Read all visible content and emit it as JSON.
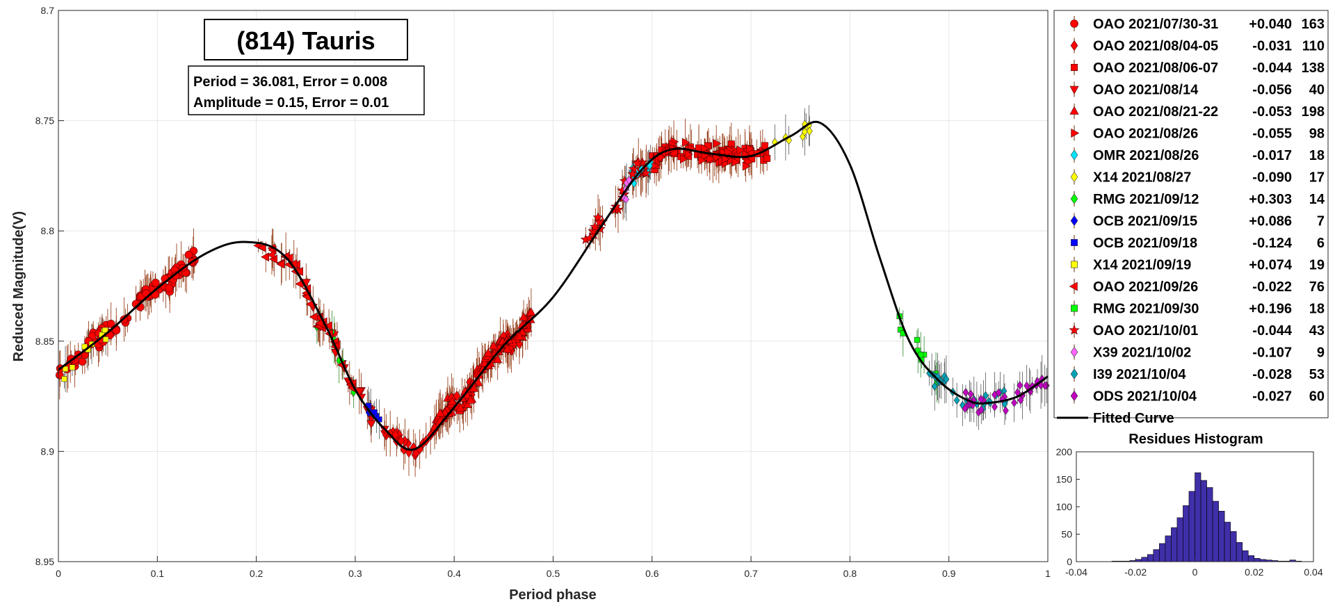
{
  "chart_data": [
    {
      "type": "scatter",
      "title": "(814) Tauris",
      "annotation": {
        "period_line": "Period =  36.081, Error = 0.008",
        "amplitude_line": "Amplitude = 0.15, Error = 0.01"
      },
      "xlabel": "Period phase",
      "ylabel": "Reduced Magnitude(V)",
      "xlim": [
        0,
        1
      ],
      "ylim": [
        8.7,
        8.95
      ],
      "y_reversed": true,
      "grid": true,
      "legend_position": "outside-right",
      "x_ticks": [
        "0",
        "0.1",
        "0.2",
        "0.3",
        "0.4",
        "0.5",
        "0.6",
        "0.7",
        "0.8",
        "0.9",
        "1"
      ],
      "y_ticks": [
        "8.7",
        "8.75",
        "8.8",
        "8.85",
        "8.9",
        "8.95"
      ],
      "series": [
        {
          "name": "OAO 2021/07/30-31",
          "offset": "+0.040",
          "count": "163",
          "marker": "circle",
          "color": "#ff0000",
          "x_range": [
            0.0,
            0.14
          ]
        },
        {
          "name": "OAO 2021/08/04-05",
          "offset": "-0.031",
          "count": "110",
          "marker": "diamond",
          "color": "#ff0000",
          "x_range": [
            0.33,
            0.47
          ]
        },
        {
          "name": "OAO 2021/08/06-07",
          "offset": "-0.044",
          "count": "138",
          "marker": "square",
          "color": "#ff0000",
          "x_range": [
            0.6,
            0.72
          ]
        },
        {
          "name": "OAO 2021/08/14",
          "offset": "-0.056",
          "count": "40",
          "marker": "triangle-down",
          "color": "#ff0000",
          "x_range": [
            0.25,
            0.33
          ]
        },
        {
          "name": "OAO 2021/08/21-22",
          "offset": "-0.053",
          "count": "198",
          "marker": "triangle-up",
          "color": "#ff0000",
          "x_range": [
            0.38,
            0.48
          ]
        },
        {
          "name": "OAO 2021/08/26",
          "offset": "-0.055",
          "count": "98",
          "marker": "triangle-right",
          "color": "#ff0000",
          "x_range": [
            0.58,
            0.7
          ]
        },
        {
          "name": "OMR 2021/08/26",
          "offset": "-0.017",
          "count": "18",
          "marker": "diamond",
          "color": "#00e5ff",
          "x_range": [
            0.57,
            0.6
          ]
        },
        {
          "name": "X14 2021/08/27",
          "offset": "-0.090",
          "count": "17",
          "marker": "diamond",
          "color": "#ffff00",
          "x_range": [
            0.72,
            0.76
          ]
        },
        {
          "name": "RMG 2021/09/12",
          "offset": "+0.303",
          "count": "14",
          "marker": "diamond",
          "color": "#00ff00",
          "x_range": [
            0.26,
            0.3
          ]
        },
        {
          "name": "OCB 2021/09/15",
          "offset": "+0.086",
          "count": "7",
          "marker": "diamond",
          "color": "#0000ff",
          "x_range": [
            0.3,
            0.32
          ]
        },
        {
          "name": "OCB 2021/09/18",
          "offset": "-0.124",
          "count": "6",
          "marker": "square",
          "color": "#0000ff",
          "x_range": [
            0.31,
            0.33
          ]
        },
        {
          "name": "X14 2021/09/19",
          "offset": "+0.074",
          "count": "19",
          "marker": "square",
          "color": "#ffff00",
          "x_range": [
            0.0,
            0.05
          ]
        },
        {
          "name": "OAO 2021/09/26",
          "offset": "-0.022",
          "count": "76",
          "marker": "triangle-left",
          "color": "#ff0000",
          "x_range": [
            0.2,
            0.3
          ]
        },
        {
          "name": "RMG 2021/09/30",
          "offset": "+0.196",
          "count": "18",
          "marker": "square",
          "color": "#00ff00",
          "x_range": [
            0.85,
            0.89
          ]
        },
        {
          "name": "OAO 2021/10/01",
          "offset": "-0.044",
          "count": "43",
          "marker": "star",
          "color": "#ff0000",
          "x_range": [
            0.53,
            0.6
          ]
        },
        {
          "name": "X39 2021/10/02",
          "offset": "-0.107",
          "count": "9",
          "marker": "diamond",
          "color": "#ff66ff",
          "x_range": [
            0.57,
            0.58
          ]
        },
        {
          "name": "I39 2021/10/04",
          "offset": "-0.028",
          "count": "53",
          "marker": "diamond",
          "color": "#00a3b8",
          "x_range": [
            0.88,
            0.96
          ]
        },
        {
          "name": "ODS 2021/10/04",
          "offset": "-0.027",
          "count": "60",
          "marker": "diamond",
          "color": "#c000c0",
          "x_range": [
            0.91,
            1.0
          ]
        }
      ],
      "fitted_curve": {
        "name": "Fitted Curve",
        "color": "#000000",
        "x": [
          0,
          0.05,
          0.1,
          0.15,
          0.19,
          0.23,
          0.27,
          0.3,
          0.33,
          0.36,
          0.4,
          0.45,
          0.5,
          0.55,
          0.59,
          0.62,
          0.66,
          0.7,
          0.74,
          0.77,
          0.8,
          0.83,
          0.86,
          0.89,
          0.92,
          0.94,
          0.97,
          1.0
        ],
        "y": [
          8.863,
          8.846,
          8.826,
          8.81,
          8.805,
          8.812,
          8.843,
          8.872,
          8.89,
          8.899,
          8.88,
          8.852,
          8.83,
          8.797,
          8.772,
          8.763,
          8.765,
          8.766,
          8.757,
          8.751,
          8.77,
          8.812,
          8.85,
          8.868,
          8.877,
          8.878,
          8.875,
          8.866
        ]
      }
    },
    {
      "type": "bar",
      "title": "Residues Histogram",
      "xlim": [
        -0.04,
        0.04
      ],
      "ylim": [
        0,
        200
      ],
      "x_ticks": [
        "-0.04",
        "-0.02",
        "0",
        "0.02",
        "0.04"
      ],
      "y_ticks": [
        "0",
        "50",
        "100",
        "150",
        "200"
      ],
      "bar_color": "#3f2fa8",
      "bin_width": 0.002,
      "bin_centers": [
        -0.027,
        -0.025,
        -0.023,
        -0.021,
        -0.019,
        -0.017,
        -0.015,
        -0.013,
        -0.011,
        -0.009,
        -0.007,
        -0.005,
        -0.003,
        -0.001,
        0.001,
        0.003,
        0.005,
        0.007,
        0.009,
        0.011,
        0.013,
        0.015,
        0.017,
        0.019,
        0.021,
        0.023,
        0.025,
        0.027,
        0.029,
        0.031,
        0.033,
        0.035
      ],
      "values": [
        1,
        1,
        1,
        2,
        4,
        8,
        13,
        22,
        33,
        47,
        62,
        80,
        102,
        128,
        162,
        148,
        135,
        110,
        92,
        72,
        55,
        35,
        20,
        11,
        6,
        4,
        3,
        2,
        1,
        1,
        3,
        1
      ]
    }
  ]
}
